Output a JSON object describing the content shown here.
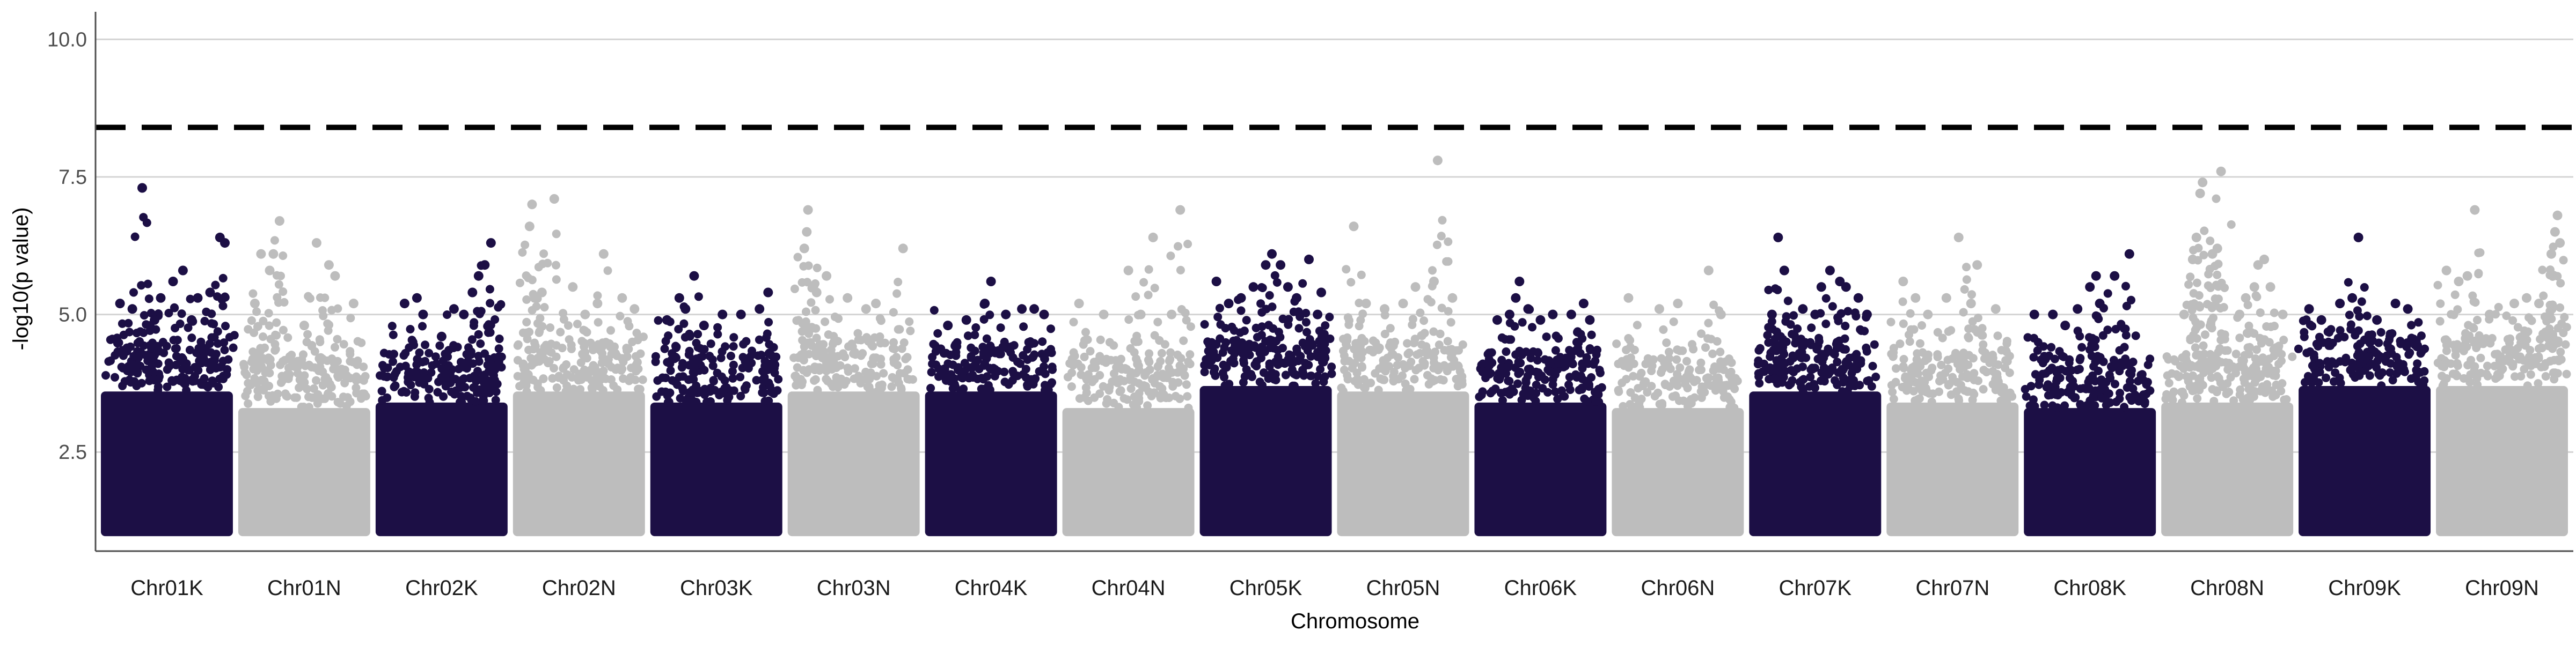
{
  "chart_data": {
    "type": "scatter",
    "subtype": "manhattan",
    "title": "",
    "xlabel": "Chromosome",
    "ylabel": "-log10(p value)",
    "ylim": [
      0.7,
      10.5
    ],
    "yticks": [
      2.5,
      5.0,
      7.5,
      10.0
    ],
    "ytick_labels": [
      "2.5",
      "5.0",
      "7.5",
      "10.0"
    ],
    "grid": "horizontal major only",
    "legend": "none",
    "threshold": {
      "value": 8.4,
      "style": "dashed",
      "color": "#000000"
    },
    "colors": {
      "odd": "#1c0f45",
      "even": "#bdbdbd"
    },
    "categories": [
      "Chr01K",
      "Chr01N",
      "Chr02K",
      "Chr02N",
      "Chr03K",
      "Chr03N",
      "Chr04K",
      "Chr04N",
      "Chr05K",
      "Chr05N",
      "Chr06K",
      "Chr06N",
      "Chr07K",
      "Chr07N",
      "Chr08K",
      "Chr08N",
      "Chr09K",
      "Chr09N"
    ],
    "series": [
      {
        "chromosome": "Chr01K",
        "color": "#1c0f45",
        "base_top": 3.6,
        "peaks": [
          [
            0.12,
            5.2
          ],
          [
            0.22,
            5.1
          ],
          [
            0.3,
            7.3
          ],
          [
            0.45,
            5.3
          ],
          [
            0.55,
            5.6
          ],
          [
            0.63,
            5.8
          ],
          [
            0.75,
            5.3
          ],
          [
            0.85,
            5.4
          ],
          [
            0.93,
            6.4
          ],
          [
            0.97,
            6.3
          ],
          [
            0.4,
            4.9
          ],
          [
            0.7,
            4.9
          ]
        ]
      },
      {
        "chromosome": "Chr01N",
        "color": "#bdbdbd",
        "base_top": 3.3,
        "peaks": [
          [
            0.1,
            5.2
          ],
          [
            0.15,
            6.1
          ],
          [
            0.22,
            5.8
          ],
          [
            0.3,
            6.7
          ],
          [
            0.25,
            6.1
          ],
          [
            0.6,
            6.3
          ],
          [
            0.7,
            5.9
          ],
          [
            0.75,
            5.7
          ],
          [
            0.9,
            5.2
          ],
          [
            0.5,
            4.8
          ]
        ]
      },
      {
        "chromosome": "Chr02K",
        "color": "#1c0f45",
        "base_top": 3.4,
        "peaks": [
          [
            0.2,
            5.2
          ],
          [
            0.3,
            5.3
          ],
          [
            0.35,
            5.0
          ],
          [
            0.5,
            4.6
          ],
          [
            0.6,
            5.1
          ],
          [
            0.75,
            5.4
          ],
          [
            0.8,
            5.7
          ],
          [
            0.85,
            5.9
          ],
          [
            0.9,
            6.3
          ],
          [
            0.68,
            5.0
          ]
        ]
      },
      {
        "chromosome": "Chr02N",
        "color": "#bdbdbd",
        "base_top": 3.6,
        "peaks": [
          [
            0.1,
            6.6
          ],
          [
            0.12,
            7.0
          ],
          [
            0.3,
            7.1
          ],
          [
            0.2,
            5.4
          ],
          [
            0.45,
            5.5
          ],
          [
            0.65,
            5.2
          ],
          [
            0.7,
            6.1
          ],
          [
            0.85,
            5.3
          ],
          [
            0.95,
            5.1
          ],
          [
            0.55,
            5.0
          ]
        ]
      },
      {
        "chromosome": "Chr03K",
        "color": "#1c0f45",
        "base_top": 3.4,
        "peaks": [
          [
            0.1,
            4.9
          ],
          [
            0.2,
            5.3
          ],
          [
            0.25,
            5.1
          ],
          [
            0.32,
            5.7
          ],
          [
            0.4,
            4.8
          ],
          [
            0.55,
            5.0
          ],
          [
            0.7,
            5.0
          ],
          [
            0.85,
            5.1
          ],
          [
            0.92,
            5.4
          ]
        ]
      },
      {
        "chromosome": "Chr03N",
        "color": "#bdbdbd",
        "base_top": 3.6,
        "peaks": [
          [
            0.1,
            6.2
          ],
          [
            0.12,
            6.5
          ],
          [
            0.13,
            6.9
          ],
          [
            0.2,
            5.4
          ],
          [
            0.28,
            5.7
          ],
          [
            0.45,
            5.3
          ],
          [
            0.6,
            5.1
          ],
          [
            0.68,
            5.2
          ],
          [
            0.9,
            6.2
          ]
        ]
      },
      {
        "chromosome": "Chr04K",
        "color": "#1c0f45",
        "base_top": 3.6,
        "peaks": [
          [
            0.15,
            4.8
          ],
          [
            0.3,
            4.9
          ],
          [
            0.45,
            5.2
          ],
          [
            0.5,
            5.6
          ],
          [
            0.62,
            5.0
          ],
          [
            0.75,
            5.1
          ],
          [
            0.85,
            5.1
          ],
          [
            0.93,
            5.0
          ]
        ]
      },
      {
        "chromosome": "Chr04N",
        "color": "#bdbdbd",
        "base_top": 3.3,
        "peaks": [
          [
            0.1,
            5.2
          ],
          [
            0.3,
            5.0
          ],
          [
            0.5,
            5.8
          ],
          [
            0.6,
            5.0
          ],
          [
            0.7,
            6.4
          ],
          [
            0.92,
            6.9
          ],
          [
            0.85,
            5.0
          ]
        ]
      },
      {
        "chromosome": "Chr05K",
        "color": "#1c0f45",
        "base_top": 3.7,
        "peaks": [
          [
            0.1,
            5.6
          ],
          [
            0.2,
            5.2
          ],
          [
            0.3,
            5.3
          ],
          [
            0.4,
            5.5
          ],
          [
            0.5,
            5.9
          ],
          [
            0.55,
            6.1
          ],
          [
            0.62,
            5.9
          ],
          [
            0.68,
            5.5
          ],
          [
            0.75,
            5.3
          ],
          [
            0.85,
            6.0
          ],
          [
            0.95,
            5.4
          ],
          [
            0.92,
            5.0
          ]
        ]
      },
      {
        "chromosome": "Chr05N",
        "color": "#bdbdbd",
        "base_top": 3.6,
        "peaks": [
          [
            0.1,
            6.6
          ],
          [
            0.2,
            5.2
          ],
          [
            0.35,
            5.1
          ],
          [
            0.5,
            5.2
          ],
          [
            0.6,
            5.5
          ],
          [
            0.75,
            5.6
          ],
          [
            0.78,
            7.8
          ],
          [
            0.9,
            5.3
          ]
        ]
      },
      {
        "chromosome": "Chr06K",
        "color": "#1c0f45",
        "base_top": 3.4,
        "peaks": [
          [
            0.15,
            4.9
          ],
          [
            0.25,
            5.0
          ],
          [
            0.3,
            5.3
          ],
          [
            0.33,
            5.6
          ],
          [
            0.4,
            5.1
          ],
          [
            0.5,
            4.9
          ],
          [
            0.6,
            5.0
          ],
          [
            0.75,
            5.0
          ],
          [
            0.85,
            5.2
          ],
          [
            0.9,
            4.9
          ]
        ]
      },
      {
        "chromosome": "Chr06N",
        "color": "#bdbdbd",
        "base_top": 3.3,
        "peaks": [
          [
            0.1,
            5.3
          ],
          [
            0.35,
            5.1
          ],
          [
            0.5,
            5.2
          ],
          [
            0.75,
            5.8
          ],
          [
            0.85,
            5.0
          ]
        ]
      },
      {
        "chromosome": "Chr07K",
        "color": "#1c0f45",
        "base_top": 3.6,
        "peaks": [
          [
            0.15,
            5.0
          ],
          [
            0.2,
            6.4
          ],
          [
            0.25,
            5.8
          ],
          [
            0.4,
            5.1
          ],
          [
            0.5,
            5.0
          ],
          [
            0.55,
            5.5
          ],
          [
            0.62,
            5.8
          ],
          [
            0.7,
            5.6
          ],
          [
            0.75,
            5.5
          ],
          [
            0.85,
            5.3
          ],
          [
            0.92,
            5.0
          ]
        ]
      },
      {
        "chromosome": "Chr07N",
        "color": "#bdbdbd",
        "base_top": 3.4,
        "peaks": [
          [
            0.1,
            5.6
          ],
          [
            0.2,
            5.3
          ],
          [
            0.3,
            5.0
          ],
          [
            0.45,
            5.3
          ],
          [
            0.55,
            6.4
          ],
          [
            0.65,
            5.2
          ],
          [
            0.7,
            5.9
          ],
          [
            0.85,
            5.1
          ]
        ]
      },
      {
        "chromosome": "Chr08K",
        "color": "#1c0f45",
        "base_top": 3.3,
        "peaks": [
          [
            0.05,
            5.0
          ],
          [
            0.2,
            5.0
          ],
          [
            0.4,
            5.1
          ],
          [
            0.5,
            5.5
          ],
          [
            0.55,
            5.7
          ],
          [
            0.58,
            5.2
          ],
          [
            0.7,
            5.7
          ],
          [
            0.82,
            6.1
          ],
          [
            0.3,
            4.8
          ]
        ]
      },
      {
        "chromosome": "Chr08N",
        "color": "#bdbdbd",
        "base_top": 3.4,
        "peaks": [
          [
            0.15,
            5.0
          ],
          [
            0.22,
            6.0
          ],
          [
            0.25,
            6.4
          ],
          [
            0.28,
            7.2
          ],
          [
            0.3,
            7.4
          ],
          [
            0.38,
            6.1
          ],
          [
            0.42,
            6.2
          ],
          [
            0.45,
            7.6
          ],
          [
            0.6,
            5.0
          ],
          [
            0.65,
            5.3
          ],
          [
            0.72,
            5.5
          ],
          [
            0.75,
            5.9
          ],
          [
            0.8,
            6.0
          ],
          [
            0.85,
            5.5
          ],
          [
            0.95,
            5.0
          ]
        ]
      },
      {
        "chromosome": "Chr09K",
        "color": "#1c0f45",
        "base_top": 3.7,
        "peaks": [
          [
            0.05,
            5.1
          ],
          [
            0.15,
            4.9
          ],
          [
            0.3,
            5.2
          ],
          [
            0.4,
            5.3
          ],
          [
            0.45,
            6.4
          ],
          [
            0.6,
            4.9
          ],
          [
            0.75,
            5.2
          ],
          [
            0.85,
            5.1
          ]
        ]
      },
      {
        "chromosome": "Chr09N",
        "color": "#bdbdbd",
        "base_top": 3.7,
        "peaks": [
          [
            0.05,
            5.8
          ],
          [
            0.15,
            5.6
          ],
          [
            0.22,
            5.7
          ],
          [
            0.28,
            6.9
          ],
          [
            0.4,
            5.0
          ],
          [
            0.6,
            5.2
          ],
          [
            0.7,
            5.3
          ],
          [
            0.8,
            5.2
          ],
          [
            0.9,
            6.1
          ],
          [
            0.93,
            6.5
          ],
          [
            0.95,
            6.8
          ],
          [
            0.97,
            6.3
          ]
        ]
      }
    ]
  }
}
